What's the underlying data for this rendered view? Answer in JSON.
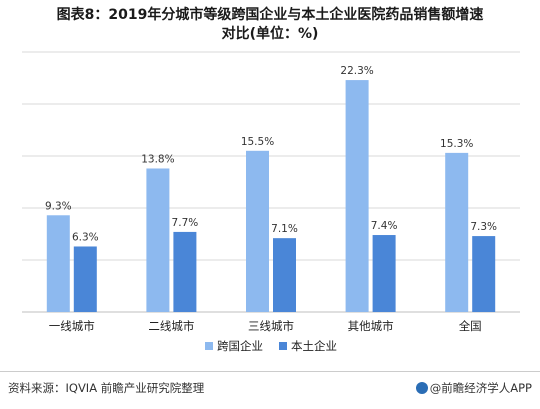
{
  "title_line1": "图表8：2019年分城市等级跨国企业与本土企业医院药品销售额增速",
  "title_line2": "对比(单位：%)",
  "source": "资料来源：IQVIA 前瞻产业研究院整理",
  "brand": "@前瞻经济学人APP",
  "colors": {
    "series1": "#8db9ef",
    "series2": "#4a86d7",
    "grid": "#d9d9d9",
    "axis": "#bfbfbf"
  },
  "chart_data": {
    "type": "bar",
    "categories": [
      "一线城市",
      "二线城市",
      "三线城市",
      "其他城市",
      "全国"
    ],
    "series": [
      {
        "name": "跨国企业",
        "values": [
          9.3,
          13.8,
          15.5,
          22.3,
          15.3
        ],
        "labels": [
          "9.3%",
          "13.8%",
          "15.5%",
          "22.3%",
          "15.3%"
        ]
      },
      {
        "name": "本土企业",
        "values": [
          6.3,
          7.7,
          7.1,
          7.4,
          7.3
        ],
        "labels": [
          "6.3%",
          "7.7%",
          "7.1%",
          "7.4%",
          "7.3%"
        ]
      }
    ],
    "ylim": [
      0,
      25
    ],
    "grid": true,
    "legend": "bottom"
  }
}
